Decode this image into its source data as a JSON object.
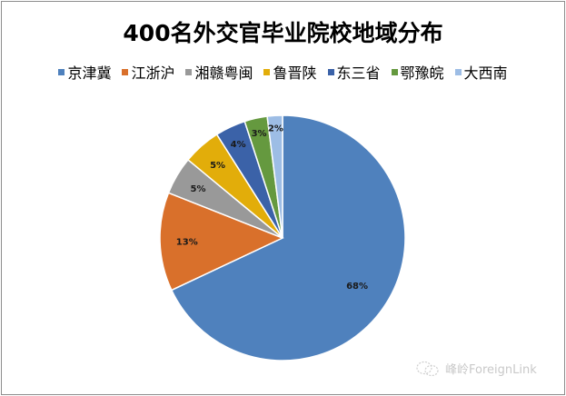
{
  "chart_data": {
    "type": "pie",
    "title": "400名外交官毕业院校地域分布",
    "legend_position": "top",
    "start_angle_deg": 0,
    "direction": "clockwise",
    "categories": [
      "京津冀",
      "江浙沪",
      "湘赣粤闽",
      "鲁晋陕",
      "东三省",
      "鄂豫皖",
      "大西南"
    ],
    "values": [
      68,
      13,
      5,
      5,
      4,
      3,
      2
    ],
    "labels": [
      "68%",
      "13%",
      "5%",
      "5%",
      "4%",
      "3%",
      "2%"
    ],
    "colors": [
      "#4f81bd",
      "#d9702b",
      "#999999",
      "#e2ad0a",
      "#3b62a8",
      "#65993f",
      "#9dbde5"
    ]
  },
  "watermark": {
    "icon": "wechat-icon",
    "text": "峰岭ForeignLink"
  }
}
